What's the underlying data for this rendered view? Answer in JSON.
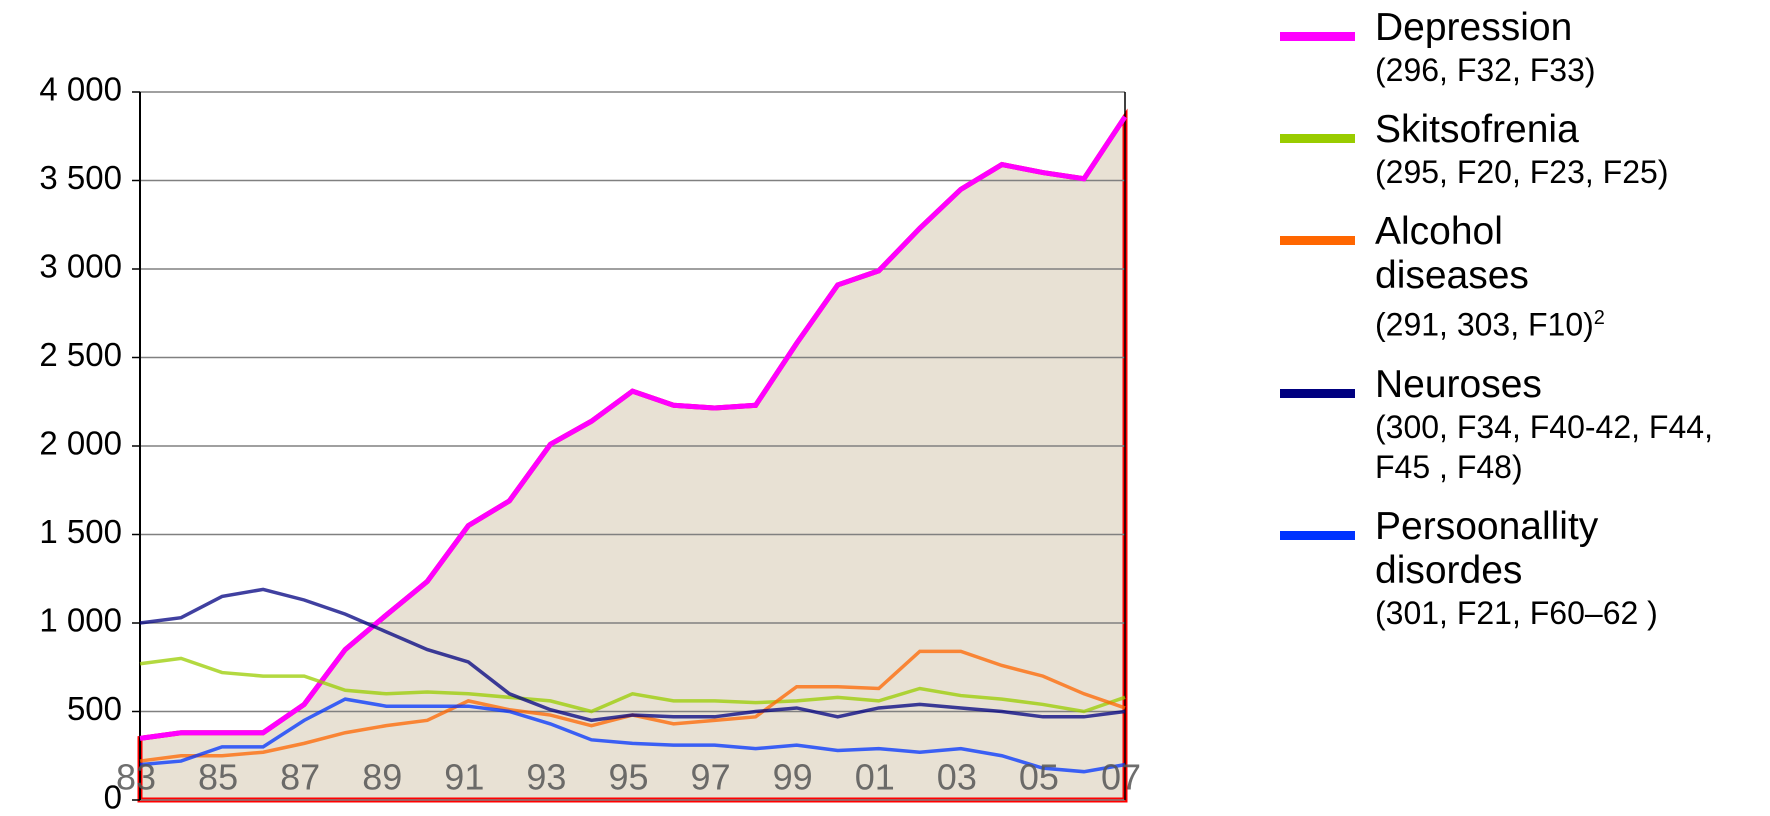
{
  "chart_data": {
    "type": "line",
    "categories": [
      "83",
      null,
      "85",
      null,
      "87",
      null,
      "89",
      null,
      "91",
      null,
      "93",
      null,
      "95",
      null,
      "97",
      null,
      "99",
      null,
      "01",
      null,
      "03",
      null,
      "05",
      null,
      "07"
    ],
    "ylim": [
      0,
      4000
    ],
    "yticks": [
      0,
      500,
      {
        "value": 1000,
        "label": "1 000"
      },
      {
        "value": 1500,
        "label": "1 500"
      },
      {
        "value": 2000,
        "label": "2 000"
      },
      {
        "value": 2500,
        "label": "2 500"
      },
      {
        "value": 3000,
        "label": "3 000"
      },
      {
        "value": 3500,
        "label": "3 500"
      },
      {
        "value": 4000,
        "label": "4 000"
      }
    ],
    "grid": true,
    "series": [
      {
        "name": "Depression",
        "codes": "(296, F32, F33)",
        "color": "#ff00ff",
        "values": [
          348,
          380,
          380,
          380,
          540,
          850,
          1045,
          1235,
          1550,
          1690,
          2010,
          2140,
          2310,
          2230,
          2215,
          2230,
          2580,
          2910,
          2990,
          3230,
          3450,
          3590,
          3545,
          3510,
          3860
        ]
      },
      {
        "name": "Skitsofrenia",
        "codes": "(295, F20, F23, F25)",
        "color": "#99cc00",
        "values": [
          770,
          800,
          720,
          700,
          700,
          620,
          600,
          610,
          600,
          580,
          560,
          500,
          600,
          560,
          560,
          550,
          560,
          580,
          560,
          630,
          590,
          570,
          540,
          500,
          580
        ]
      },
      {
        "name": "Alcohol diseases",
        "codes": "(291, 303, F10)",
        "codes_sup": "2",
        "color": "#ff6600",
        "values": [
          220,
          250,
          250,
          270,
          320,
          380,
          420,
          450,
          560,
          510,
          480,
          420,
          480,
          430,
          450,
          470,
          640,
          640,
          630,
          840,
          840,
          760,
          700,
          600,
          520
        ]
      },
      {
        "name": "Neuroses",
        "codes": "(300, F34, F40-42, F44, F45 , F48)",
        "color": "#000080",
        "values": [
          1000,
          1030,
          1150,
          1190,
          1130,
          1050,
          950,
          850,
          780,
          600,
          510,
          450,
          480,
          470,
          470,
          500,
          520,
          470,
          520,
          540,
          520,
          500,
          470,
          470,
          500
        ]
      },
      {
        "name": "Persoonallity disordes",
        "codes": "(301, F21, F60–62 )",
        "color": "#0033ff",
        "values": [
          200,
          220,
          300,
          300,
          450,
          570,
          530,
          530,
          530,
          500,
          430,
          340,
          320,
          310,
          310,
          290,
          310,
          280,
          290,
          270,
          290,
          250,
          180,
          160,
          200
        ]
      }
    ]
  }
}
